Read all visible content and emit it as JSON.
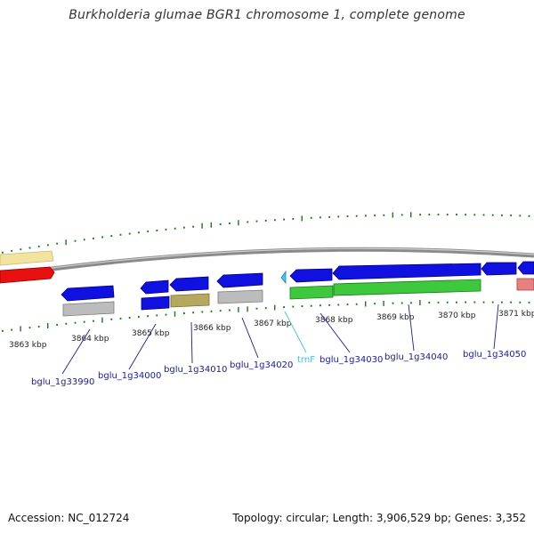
{
  "title": "Burkholderia glumae BGR1 chromosome 1, complete genome",
  "footer": {
    "accession": "Accession: NC_012724",
    "summary": "Topology: circular; Length: 3,906,529 bp; Genes: 3,352"
  },
  "colors": {
    "backbone": "#8a8a8a",
    "cds": "#1010e0",
    "gene_green": "#3ec83e",
    "gene_grey": "#bcbcbc",
    "gene_olive": "#b6a85e",
    "gene_pale": "#f2e4a0",
    "gene_red": "#e81010",
    "gene_pink": "#e88080",
    "trna": "#40c8f0",
    "gc_ticks": "#1a7a1a",
    "label": "#1a1a9e"
  },
  "scale_ticks": [
    "3863 kbp",
    "3864 kbp",
    "3865 kbp",
    "3866 kbp",
    "3867 kbp",
    "3868 kbp",
    "3869 kbp",
    "3870 kbp",
    "3871 kbp"
  ],
  "gene_labels": [
    "bglu_1g33990",
    "bglu_1g34000",
    "bglu_1g34010",
    "bglu_1g34020",
    "trnF",
    "bglu_1g34030",
    "bglu_1g34040",
    "bglu_1g34050"
  ]
}
